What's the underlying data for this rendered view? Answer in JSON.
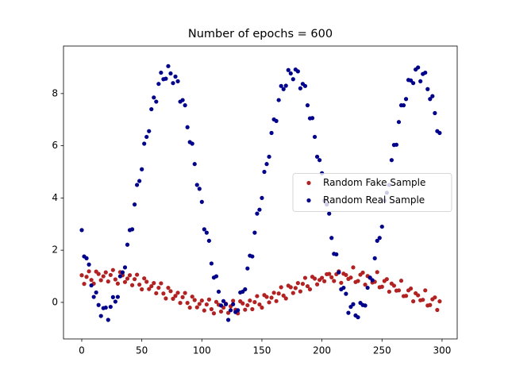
{
  "chart_data": {
    "type": "scatter",
    "title": "Number of epochs = 600",
    "x": [
      0,
      2,
      4,
      6,
      8,
      10,
      12,
      14,
      16,
      18,
      20,
      22,
      24,
      26,
      28,
      30,
      32,
      34,
      36,
      38,
      40,
      42,
      44,
      46,
      48,
      50,
      52,
      54,
      56,
      58,
      60,
      62,
      64,
      66,
      68,
      70,
      72,
      74,
      76,
      78,
      80,
      82,
      84,
      86,
      88,
      90,
      92,
      94,
      96,
      98,
      100,
      102,
      104,
      106,
      108,
      110,
      112,
      114,
      116,
      118,
      120,
      122,
      124,
      126,
      128,
      130,
      132,
      134,
      136,
      138,
      140,
      142,
      144,
      146,
      148,
      150,
      152,
      154,
      156,
      158,
      160,
      162,
      164,
      166,
      168,
      170,
      172,
      174,
      176,
      178,
      180,
      182,
      184,
      186,
      188,
      190,
      192,
      194,
      196,
      198,
      200,
      202,
      204,
      206,
      208,
      210,
      212,
      214,
      216,
      218,
      220,
      222,
      224,
      226,
      228,
      230,
      232,
      234,
      236,
      238,
      240,
      242,
      244,
      246,
      248,
      250,
      252,
      254,
      256,
      258,
      260,
      262,
      264,
      266,
      268,
      270,
      272,
      274,
      276,
      278,
      280,
      282,
      284,
      286,
      288,
      290,
      292,
      294,
      296,
      298
    ],
    "series": [
      {
        "name": "Random Fake Sample",
        "color": "#b22222",
        "values": [
          1.04,
          0.71,
          0.98,
          1.19,
          0.86,
          0.72,
          1.18,
          1.09,
          0.85,
          1.0,
          1.15,
          0.8,
          1.05,
          1.24,
          0.88,
          0.72,
          1.16,
          1.04,
          0.78,
          0.91,
          1.04,
          0.66,
          0.89,
          1.06,
          0.68,
          0.5,
          0.92,
          0.79,
          0.51,
          0.62,
          0.74,
          0.35,
          0.56,
          0.73,
          0.34,
          0.15,
          0.56,
          0.43,
          0.14,
          0.25,
          0.37,
          -0.02,
          0.2,
          0.36,
          -0.02,
          -0.2,
          0.22,
          0.09,
          -0.19,
          -0.06,
          0.07,
          -0.31,
          -0.08,
          0.11,
          -0.26,
          -0.42,
          0.02,
          -0.09,
          -0.35,
          -0.2,
          -0.05,
          -0.4,
          -0.15,
          0.06,
          -0.28,
          -0.42,
          0.04,
          -0.04,
          -0.28,
          -0.11,
          0.07,
          -0.26,
          0.01,
          0.24,
          -0.08,
          -0.2,
          0.28,
          0.21,
          0.0,
          0.18,
          0.37,
          0.05,
          0.34,
          0.58,
          0.26,
          0.15,
          0.64,
          0.58,
          0.36,
          0.55,
          0.74,
          0.42,
          0.71,
          0.94,
          0.62,
          0.5,
          0.98,
          0.91,
          0.69,
          0.86,
          0.94,
          0.81,
          1.08,
          1.09,
          0.96,
          0.82,
          1.08,
          1.19,
          0.75,
          1.1,
          1.05,
          0.9,
          0.95,
          1.34,
          0.78,
          0.82,
          1.06,
          1.14,
          0.68,
          1.01,
          0.94,
          0.76,
          0.79,
          1.16,
          0.58,
          0.6,
          0.82,
          0.89,
          0.41,
          0.72,
          0.64,
          0.45,
          0.46,
          0.83,
          0.24,
          0.25,
          0.46,
          0.53,
          0.04,
          0.35,
          0.27,
          0.08,
          0.1,
          0.46,
          -0.12,
          -0.1,
          0.12,
          0.19,
          -0.29,
          0.04
        ]
      },
      {
        "name": "Random Real Sample",
        "color": "#00008b",
        "values": [
          2.77,
          1.76,
          1.69,
          1.45,
          0.65,
          0.21,
          0.38,
          -0.1,
          -0.52,
          -0.22,
          -0.2,
          -0.67,
          -0.17,
          0.2,
          0.03,
          0.21,
          1.0,
          1.15,
          1.34,
          2.21,
          2.77,
          2.8,
          3.75,
          4.5,
          4.65,
          5.1,
          6.08,
          6.34,
          6.56,
          7.4,
          7.85,
          7.69,
          8.37,
          8.8,
          8.55,
          8.57,
          9.05,
          8.77,
          8.4,
          8.65,
          8.47,
          7.69,
          7.75,
          7.55,
          6.71,
          6.14,
          6.08,
          5.3,
          4.5,
          4.35,
          3.85,
          2.8,
          2.67,
          2.36,
          1.49,
          0.95,
          1.0,
          0.41,
          -0.12,
          0.05,
          -0.07,
          -0.67,
          -0.3,
          -0.07,
          -0.37,
          -0.3,
          0.38,
          0.41,
          0.5,
          1.3,
          1.79,
          1.76,
          2.67,
          3.4,
          3.55,
          4.0,
          5.0,
          5.3,
          5.58,
          6.49,
          7.01,
          6.95,
          7.75,
          8.29,
          8.17,
          8.3,
          8.9,
          8.77,
          8.55,
          8.92,
          8.85,
          8.2,
          8.37,
          8.29,
          7.55,
          7.05,
          7.06,
          6.34,
          5.58,
          5.45,
          4.95,
          3.9,
          3.75,
          3.4,
          2.47,
          1.86,
          1.84,
          1.15,
          0.5,
          0.56,
          0.33,
          -0.4,
          -0.17,
          -0.07,
          -0.5,
          -0.57,
          -0.02,
          -0.1,
          -0.12,
          0.56,
          0.95,
          0.85,
          1.69,
          2.36,
          2.47,
          2.9,
          3.9,
          4.2,
          4.5,
          5.45,
          6.03,
          6.04,
          6.91,
          7.55,
          7.55,
          7.79,
          8.52,
          8.5,
          8.4,
          8.92,
          9.0,
          8.47,
          8.75,
          8.8,
          8.17,
          7.79,
          7.9,
          7.25,
          6.56,
          6.49
        ]
      }
    ],
    "xlim": [
      -15.2,
      312.6
    ],
    "xticks": [
      0,
      50,
      100,
      150,
      200,
      250,
      300
    ],
    "ylim": [
      -1.4,
      9.82
    ],
    "yticks": [
      0,
      2,
      4,
      6,
      8
    ],
    "legend": "center right"
  }
}
